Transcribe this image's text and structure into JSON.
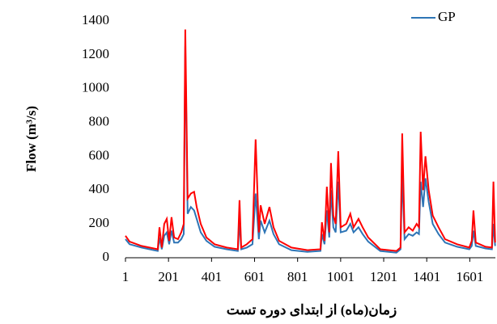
{
  "chart_data": {
    "type": "line",
    "xlabel": "زمان(ماه) از ابتدای دوره تست",
    "ylabel": "Flow (m³/s)",
    "x": [
      1,
      20,
      76,
      133,
      151,
      159,
      170,
      181,
      193,
      204,
      215,
      227,
      245,
      260,
      272,
      279,
      290,
      305,
      320,
      332,
      351,
      377,
      415,
      471,
      523,
      531,
      539,
      565,
      591,
      606,
      621,
      629,
      648,
      670,
      689,
      715,
      772,
      847,
      907,
      914,
      926,
      937,
      948,
      956,
      967,
      978,
      990,
      1001,
      1027,
      1046,
      1061,
      1084,
      1103,
      1129,
      1185,
      1260,
      1279,
      1287,
      1298,
      1317,
      1336,
      1354,
      1365,
      1373,
      1384,
      1395,
      1410,
      1429,
      1456,
      1486,
      1542,
      1599,
      1610,
      1618,
      1629,
      1674,
      1704,
      1711,
      1719
    ],
    "series": [
      {
        "color": "#ff0000",
        "values": [
          130,
          95,
          70,
          55,
          50,
          180,
          60,
          200,
          230,
          100,
          240,
          120,
          110,
          150,
          200,
          1350,
          350,
          380,
          390,
          300,
          200,
          120,
          80,
          60,
          50,
          340,
          60,
          80,
          110,
          700,
          150,
          310,
          200,
          300,
          180,
          100,
          60,
          45,
          50,
          210,
          100,
          420,
          150,
          560,
          250,
          200,
          630,
          180,
          200,
          260,
          180,
          230,
          180,
          120,
          50,
          40,
          60,
          735,
          150,
          180,
          160,
          200,
          180,
          745,
          400,
          600,
          400,
          250,
          180,
          110,
          80,
          60,
          100,
          280,
          90,
          65,
          60,
          450,
          90
        ]
      },
      {
        "name": "GP",
        "color": "#2e75b6",
        "values": [
          110,
          80,
          60,
          45,
          40,
          120,
          50,
          130,
          150,
          80,
          160,
          90,
          90,
          110,
          140,
          1250,
          260,
          300,
          280,
          230,
          150,
          100,
          65,
          50,
          40,
          220,
          50,
          60,
          80,
          380,
          110,
          220,
          150,
          220,
          140,
          80,
          45,
          35,
          40,
          140,
          80,
          280,
          120,
          400,
          180,
          150,
          450,
          150,
          160,
          200,
          150,
          180,
          140,
          95,
          40,
          30,
          50,
          500,
          110,
          140,
          130,
          150,
          140,
          450,
          300,
          470,
          330,
          200,
          140,
          90,
          65,
          50,
          70,
          160,
          70,
          55,
          50,
          200,
          70
        ]
      }
    ],
    "xlim": [
      1,
      1720
    ],
    "xticks": [
      1,
      201,
      401,
      601,
      801,
      1001,
      1201,
      1401,
      1601
    ],
    "ylim": [
      0,
      1400
    ],
    "yticks": [
      0,
      200,
      400,
      600,
      800,
      1000,
      1200,
      1400
    ],
    "legend": "top-right"
  }
}
